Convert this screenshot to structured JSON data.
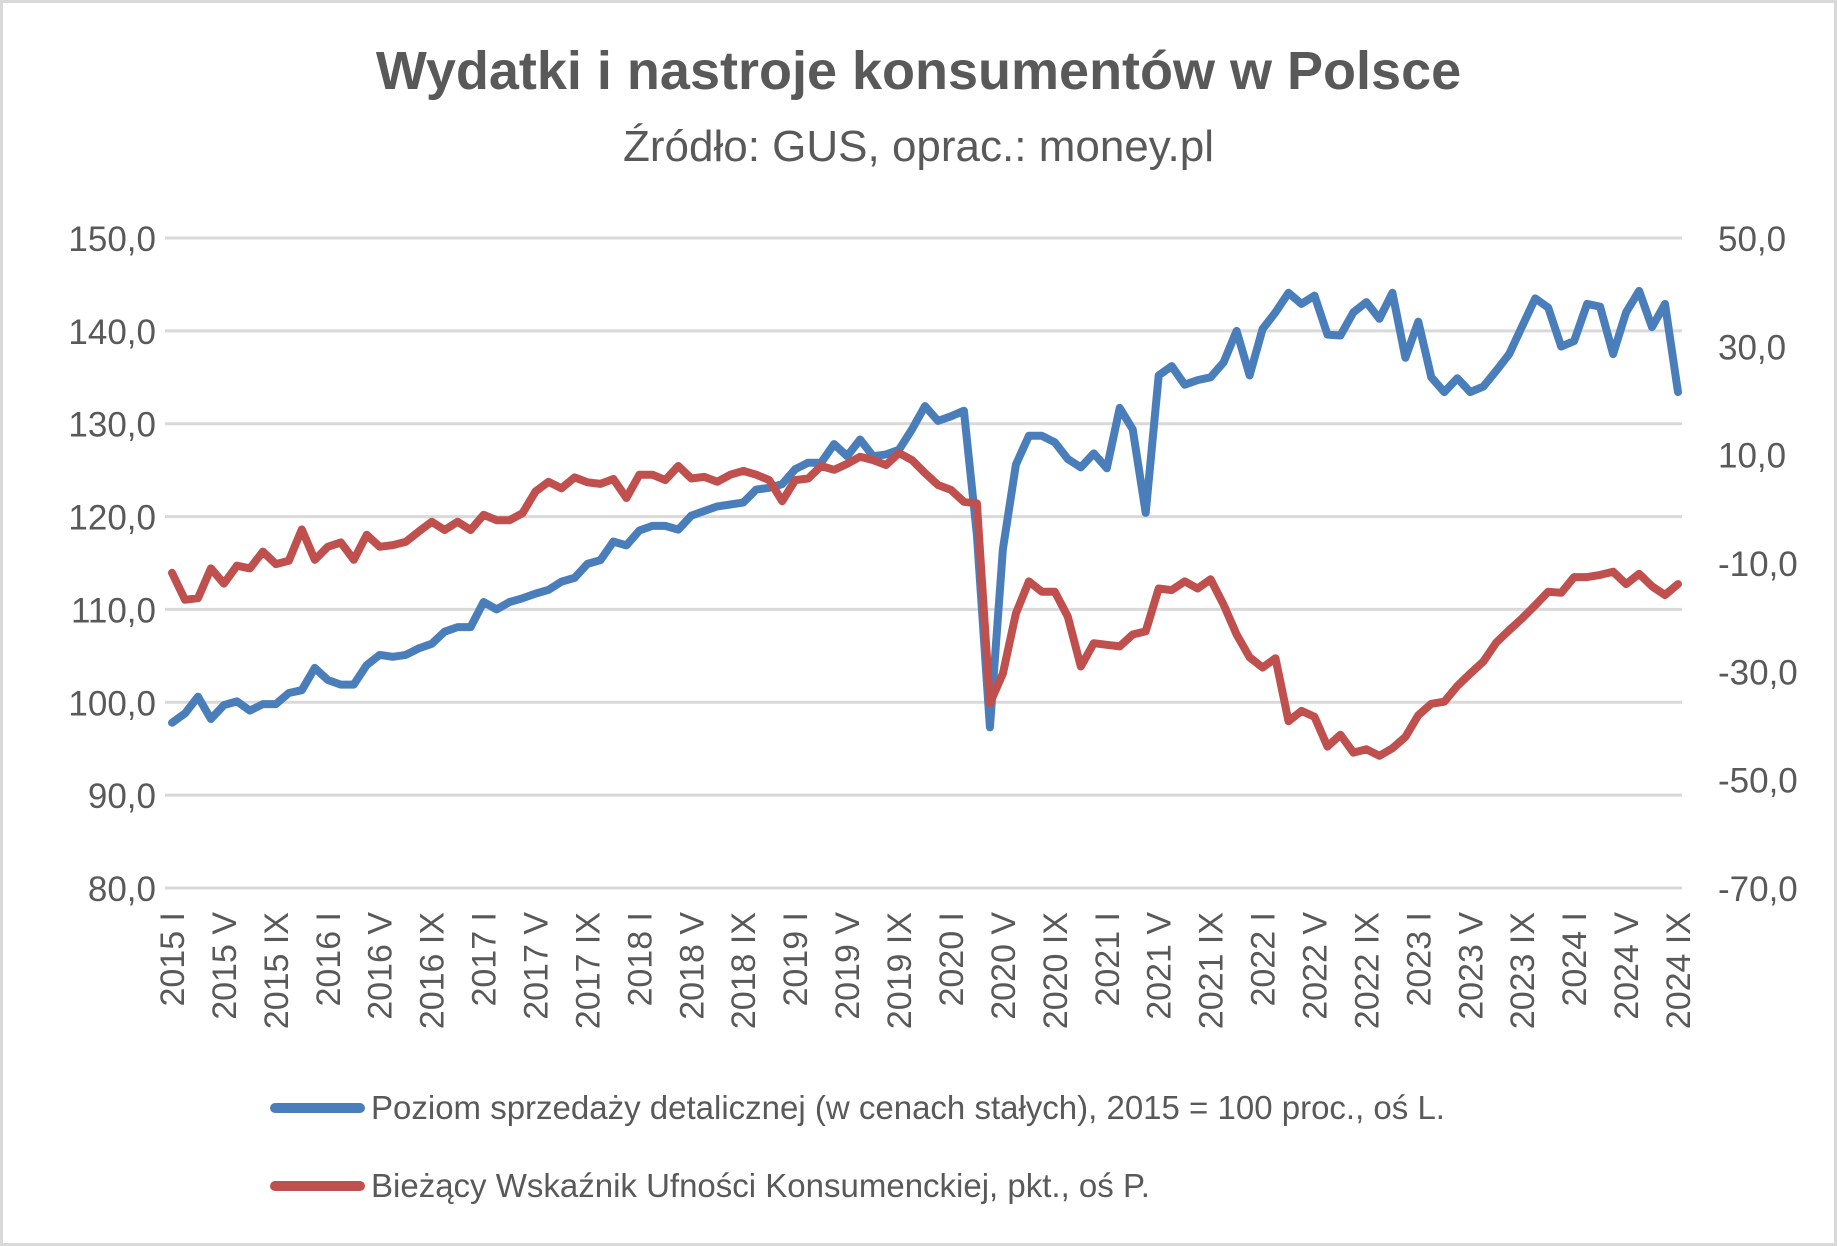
{
  "chart_data": {
    "type": "line",
    "title": "Wydatki i nastroje konsumentów w Polsce",
    "subtitle": "Źródło: GUS, oprac.: money.pl",
    "xlabel": "",
    "ylabel_left": "",
    "ylabel_right": "",
    "grid": true,
    "legend_position": "bottom",
    "x_start": "2015 I",
    "x_end": "2024 IX",
    "x_frequency": "monthly",
    "x_tick_labels": [
      "2015 I",
      "2015 V",
      "2015 IX",
      "2016 I",
      "2016 V",
      "2016 IX",
      "2017 I",
      "2017 V",
      "2017 IX",
      "2018 I",
      "2018 V",
      "2018 IX",
      "2019 I",
      "2019 V",
      "2019 IX",
      "2020 I",
      "2020 V",
      "2020 IX",
      "2021 I",
      "2021 V",
      "2021 IX",
      "2022 I",
      "2022 V",
      "2022 IX",
      "2023 I",
      "2023 V",
      "2023 IX",
      "2024 I",
      "2024 V",
      "2024 IX"
    ],
    "y_left": {
      "min": 80,
      "max": 150,
      "step": 10,
      "tick_labels": [
        "150,0",
        "140,0",
        "130,0",
        "120,0",
        "110,0",
        "100,0",
        "90,0",
        "80,0"
      ]
    },
    "y_right": {
      "min": -70,
      "max": 50,
      "step": 20,
      "tick_labels": [
        "50,0",
        "30,0",
        "10,0",
        "-10,0",
        "-30,0",
        "-50,0",
        "-70,0"
      ]
    },
    "series": [
      {
        "name": "Poziom sprzedaży detalicznej (w cenach stałych), 2015 = 100 proc., oś L.",
        "axis": "left",
        "color": "#4a7ebb",
        "values": [
          97.8,
          98.8,
          100.6,
          98.2,
          99.7,
          100.1,
          99.1,
          99.8,
          99.8,
          101.0,
          101.3,
          103.7,
          102.4,
          101.9,
          101.9,
          104.0,
          105.1,
          104.9,
          105.1,
          105.8,
          106.3,
          107.6,
          108.1,
          108.1,
          110.8,
          110.0,
          110.8,
          111.2,
          111.7,
          112.1,
          113.0,
          113.4,
          114.9,
          115.3,
          117.3,
          116.9,
          118.5,
          119.0,
          119.0,
          118.6,
          120.1,
          120.6,
          121.1,
          121.3,
          121.5,
          122.9,
          123.1,
          123.5,
          125.1,
          125.8,
          125.8,
          127.8,
          126.5,
          128.3,
          126.5,
          126.7,
          127.2,
          129.4,
          131.9,
          130.3,
          130.8,
          131.4,
          118.0,
          97.3,
          116.5,
          125.6,
          128.7,
          128.7,
          128.0,
          126.2,
          125.3,
          126.8,
          125.2,
          131.7,
          129.4,
          120.4,
          135.2,
          136.2,
          134.2,
          134.7,
          135.0,
          136.6,
          140.0,
          135.2,
          140.2,
          142.0,
          144.1,
          142.9,
          143.8,
          139.6,
          139.5,
          142.0,
          143.1,
          141.3,
          144.1,
          137.1,
          141.0,
          135.0,
          133.4,
          134.9,
          133.4,
          134.0,
          135.7,
          137.5,
          140.5,
          143.5,
          142.5,
          138.3,
          138.9,
          142.9,
          142.6,
          137.5,
          142.0,
          144.3,
          140.4,
          142.9,
          133.4
        ]
      },
      {
        "name": "Bieżący Wskaźnik Ufności Konsumenckiej, pkt., oś P.",
        "axis": "right",
        "color": "#c0504d",
        "values": [
          -11.8,
          -16.8,
          -16.5,
          -11.0,
          -13.8,
          -10.5,
          -11.0,
          -7.9,
          -10.2,
          -9.6,
          -3.8,
          -9.4,
          -7.0,
          -6.2,
          -9.4,
          -4.8,
          -7.0,
          -6.7,
          -6.1,
          -4.2,
          -2.4,
          -3.9,
          -2.4,
          -3.9,
          -1.1,
          -2.1,
          -2.1,
          -0.8,
          3.2,
          5.0,
          3.8,
          5.8,
          4.9,
          4.6,
          5.5,
          2.0,
          6.3,
          6.3,
          5.3,
          7.9,
          5.6,
          5.9,
          5.0,
          6.3,
          7.0,
          6.3,
          5.3,
          1.4,
          5.3,
          5.6,
          7.9,
          7.2,
          8.3,
          9.6,
          9.0,
          8.1,
          10.3,
          9.0,
          6.6,
          4.4,
          3.5,
          1.3,
          1.0,
          -35.9,
          -30.4,
          -19.3,
          -13.4,
          -15.3,
          -15.3,
          -19.9,
          -29.1,
          -24.8,
          -25.1,
          -25.4,
          -23.2,
          -22.6,
          -14.7,
          -15.0,
          -13.4,
          -14.7,
          -13.0,
          -17.7,
          -23.2,
          -27.4,
          -29.3,
          -27.6,
          -39.2,
          -37.3,
          -38.4,
          -43.9,
          -41.7,
          -45.0,
          -44.4,
          -45.6,
          -44.2,
          -42.1,
          -38.1,
          -36.0,
          -35.6,
          -32.7,
          -30.4,
          -28.2,
          -24.7,
          -22.4,
          -20.2,
          -17.8,
          -15.3,
          -15.5,
          -12.6,
          -12.6,
          -12.2,
          -11.6,
          -13.9,
          -12.0,
          -14.3,
          -15.9,
          -13.9
        ]
      }
    ]
  },
  "header": {
    "title": "Wydatki i nastroje konsumentów w Polsce",
    "subtitle": "Źródło: GUS, oprac.: money.pl"
  },
  "legend": {
    "items": [
      {
        "label": "Poziom sprzedaży detalicznej (w cenach stałych), 2015 = 100 proc., oś L.",
        "color": "#4a7ebb"
      },
      {
        "label": "Bieżący Wskaźnik Ufności Konsumenckiej, pkt., oś P.",
        "color": "#c0504d"
      }
    ]
  },
  "colors": {
    "text": "#595959",
    "grid": "#d9d9d9",
    "background": "#ffffff"
  }
}
